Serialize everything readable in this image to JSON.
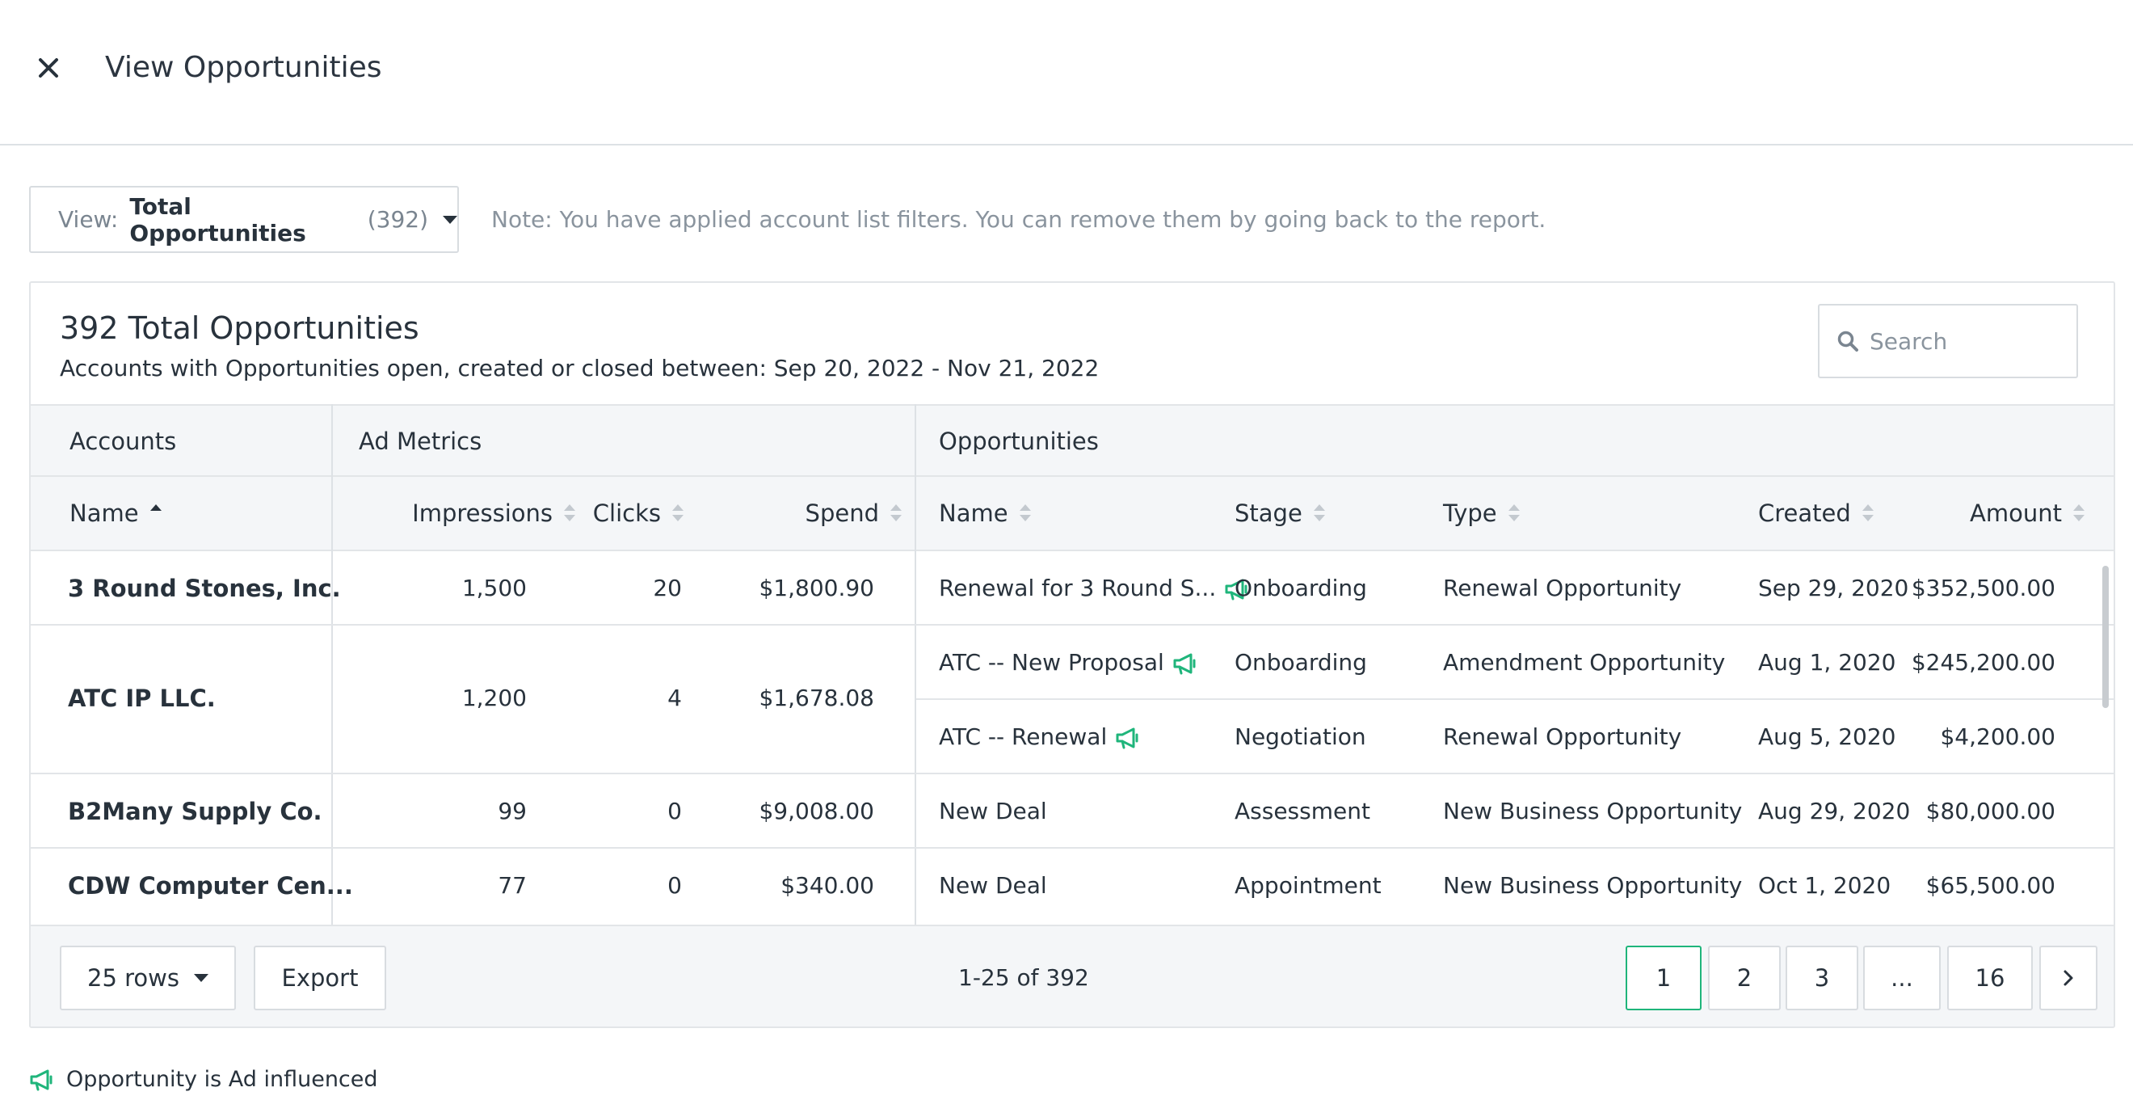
{
  "header": {
    "title": "View Opportunities"
  },
  "view_selector": {
    "label": "View:",
    "value": "Total Opportunities",
    "count": "(392)"
  },
  "note": "Note: You have applied account list filters. You can remove them by going back to the report.",
  "card": {
    "title": "392 Total Opportunities",
    "subtitle": "Accounts with Opportunities open, created or closed between: Sep 20, 2022 - Nov 21, 2022",
    "search_placeholder": "Search"
  },
  "groups": {
    "accounts": "Accounts",
    "ad_metrics": "Ad Metrics",
    "opportunities": "Opportunities"
  },
  "columns": {
    "name": "Name",
    "impressions": "Impressions",
    "clicks": "Clicks",
    "spend": "Spend",
    "opp_name": "Name",
    "stage": "Stage",
    "type": "Type",
    "created": "Created",
    "amount": "Amount"
  },
  "rows": [
    {
      "account": "3 Round Stones, Inc.",
      "impressions": "1,500",
      "clicks": "20",
      "spend": "$1,800.90",
      "opps": [
        {
          "name": "Renewal for 3 Round S...",
          "ad": true,
          "stage": "Onboarding",
          "type": "Renewal Opportunity",
          "created": "Sep 29, 2020",
          "amount": "$352,500.00"
        }
      ]
    },
    {
      "account": "ATC IP LLC.",
      "impressions": "1,200",
      "clicks": "4",
      "spend": "$1,678.08",
      "opps": [
        {
          "name": "ATC -- New Proposal",
          "ad": true,
          "stage": "Onboarding",
          "type": "Amendment Opportunity",
          "created": "Aug 1, 2020",
          "amount": "$245,200.00"
        },
        {
          "name": "ATC -- Renewal",
          "ad": true,
          "stage": "Negotiation",
          "type": "Renewal Opportunity",
          "created": "Aug 5, 2020",
          "amount": "$4,200.00"
        }
      ]
    },
    {
      "account": "B2Many Supply Co.",
      "impressions": "99",
      "clicks": "0",
      "spend": "$9,008.00",
      "opps": [
        {
          "name": "New Deal",
          "ad": false,
          "stage": "Assessment",
          "type": "New Business Opportunity",
          "created": "Aug 29, 2020",
          "amount": "$80,000.00"
        }
      ]
    },
    {
      "account": "CDW Computer Cen...",
      "impressions": "77",
      "clicks": "0",
      "spend": "$340.00",
      "opps": [
        {
          "name": "New Deal",
          "ad": false,
          "stage": "Appointment",
          "type": "New Business Opportunity",
          "created": "Oct 1, 2020",
          "amount": "$65,500.00"
        }
      ]
    }
  ],
  "footer": {
    "rows_label": "25 rows",
    "export_label": "Export",
    "range": "1-25 of 392",
    "pages": [
      "1",
      "2",
      "3",
      "...",
      "16"
    ],
    "next": "›"
  },
  "legend": {
    "text": "Opportunity is Ad influenced"
  },
  "colors": {
    "accent_green": "#1fb57b",
    "border": "#d8dce0",
    "header_bg": "#f4f6f8"
  },
  "icons": {
    "close": "close-icon",
    "ad": "megaphone-icon",
    "search": "search-icon",
    "sort": "sort-icon"
  }
}
